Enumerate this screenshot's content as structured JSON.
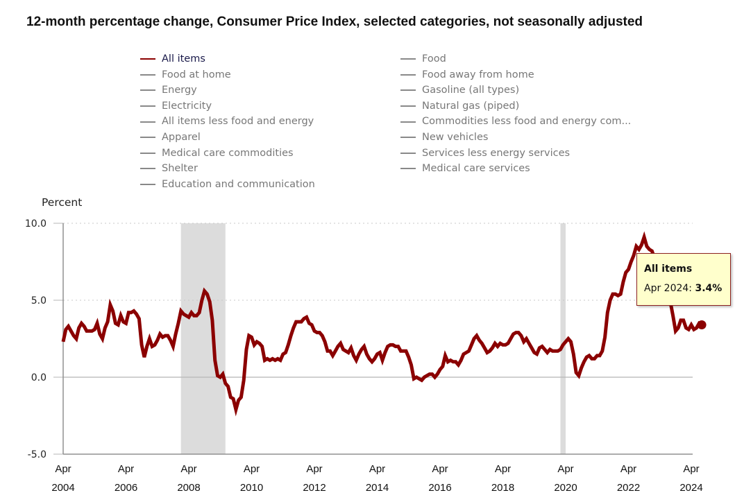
{
  "chart_data": {
    "type": "line",
    "title": "12-month percentage change, Consumer Price Index, selected categories, not seasonally adjusted",
    "ylabel": "Percent",
    "xlabel": "",
    "ylim": [
      -5.0,
      10.0
    ],
    "y_ticks": [
      {
        "value": 10.0,
        "label": "10.0"
      },
      {
        "value": 5.0,
        "label": "5.0"
      },
      {
        "value": 0.0,
        "label": "0.0"
      },
      {
        "value": -5.0,
        "label": "-5.0"
      }
    ],
    "x_ticks": [
      {
        "month": "Apr",
        "year": "2004"
      },
      {
        "month": "Apr",
        "year": "2006"
      },
      {
        "month": "Apr",
        "year": "2008"
      },
      {
        "month": "Apr",
        "year": "2010"
      },
      {
        "month": "Apr",
        "year": "2012"
      },
      {
        "month": "Apr",
        "year": "2014"
      },
      {
        "month": "Apr",
        "year": "2016"
      },
      {
        "month": "Apr",
        "year": "2018"
      },
      {
        "month": "Apr",
        "year": "2020"
      },
      {
        "month": "Apr",
        "year": "2022"
      },
      {
        "month": "Apr",
        "year": "2024"
      }
    ],
    "x_start": "2004-04",
    "x_end": "2024-04",
    "grid": "horizontal dotted",
    "recession_shading": [
      {
        "start": "2008-01",
        "end": "2009-06"
      },
      {
        "start": "2020-02",
        "end": "2020-04"
      }
    ],
    "legend": {
      "placement": "top",
      "columns": [
        [
          "All items",
          "Food at home",
          "Energy",
          "Electricity",
          "All items less food and energy",
          "Apparel",
          "Medical care commodities",
          "Shelter",
          "Education and communication"
        ],
        [
          "Food",
          "Food away from home",
          "Gasoline (all types)",
          "Natural gas (piped)",
          "Commodities less food and energy com...",
          "New vehicles",
          "Services less energy services",
          "Medical care services"
        ]
      ],
      "active": "All items"
    },
    "series": [
      {
        "name": "All items",
        "color": "#8b0000",
        "start": "2004-04",
        "frequency": "monthly",
        "values": [
          2.3,
          3.1,
          3.3,
          3.0,
          2.7,
          2.5,
          3.2,
          3.5,
          3.3,
          3.0,
          3.0,
          3.0,
          3.1,
          3.5,
          2.8,
          2.5,
          3.2,
          3.6,
          4.7,
          4.3,
          3.5,
          3.4,
          4.0,
          3.6,
          3.5,
          4.2,
          4.2,
          4.3,
          4.1,
          3.8,
          2.1,
          1.3,
          2.0,
          2.5,
          2.0,
          2.1,
          2.4,
          2.8,
          2.6,
          2.7,
          2.7,
          2.4,
          2.0,
          2.8,
          3.5,
          4.3,
          4.1,
          4.0,
          3.9,
          4.2,
          4.0,
          4.0,
          4.2,
          5.0,
          5.6,
          5.4,
          4.9,
          3.7,
          1.1,
          0.1,
          0.0,
          0.2,
          -0.4,
          -0.6,
          -1.3,
          -1.4,
          -2.1,
          -1.5,
          -1.3,
          -0.2,
          1.8,
          2.7,
          2.6,
          2.1,
          2.3,
          2.2,
          2.0,
          1.1,
          1.2,
          1.1,
          1.2,
          1.1,
          1.2,
          1.1,
          1.5,
          1.6,
          2.1,
          2.7,
          3.2,
          3.6,
          3.6,
          3.6,
          3.8,
          3.9,
          3.5,
          3.4,
          3.0,
          2.9,
          2.9,
          2.7,
          2.3,
          1.7,
          1.7,
          1.4,
          1.7,
          2.0,
          2.2,
          1.8,
          1.7,
          1.6,
          1.9,
          1.4,
          1.1,
          1.5,
          1.8,
          2.0,
          1.5,
          1.2,
          1.0,
          1.2,
          1.5,
          1.6,
          1.1,
          1.6,
          2.0,
          2.1,
          2.1,
          2.0,
          2.0,
          1.7,
          1.7,
          1.7,
          1.3,
          0.8,
          -0.1,
          0.0,
          -0.1,
          -0.2,
          0.0,
          0.1,
          0.2,
          0.2,
          0.0,
          0.2,
          0.5,
          0.7,
          1.4,
          1.0,
          1.1,
          1.0,
          1.0,
          0.8,
          1.1,
          1.5,
          1.6,
          1.7,
          2.1,
          2.5,
          2.7,
          2.4,
          2.2,
          1.9,
          1.6,
          1.7,
          1.9,
          2.2,
          2.0,
          2.2,
          2.1,
          2.1,
          2.2,
          2.5,
          2.8,
          2.9,
          2.9,
          2.7,
          2.3,
          2.5,
          2.2,
          1.9,
          1.6,
          1.5,
          1.9,
          2.0,
          1.8,
          1.6,
          1.8,
          1.7,
          1.7,
          1.7,
          1.8,
          2.1,
          2.3,
          2.5,
          2.3,
          1.5,
          0.3,
          0.1,
          0.6,
          1.0,
          1.3,
          1.4,
          1.2,
          1.2,
          1.4,
          1.4,
          1.7,
          2.6,
          4.2,
          5.0,
          5.4,
          5.4,
          5.3,
          5.4,
          6.2,
          6.8,
          7.0,
          7.5,
          7.9,
          8.5,
          8.3,
          8.6,
          9.1,
          8.5,
          8.3,
          8.2,
          7.7,
          7.1,
          6.5,
          6.4,
          6.0,
          5.0,
          4.9,
          4.0,
          3.0,
          3.2,
          3.7,
          3.7,
          3.2,
          3.1,
          3.4,
          3.1,
          3.2,
          3.5,
          3.4
        ]
      }
    ]
  },
  "tooltip": {
    "title": "All items",
    "date_label": "Apr 2024: ",
    "value_label": "3.4%"
  }
}
